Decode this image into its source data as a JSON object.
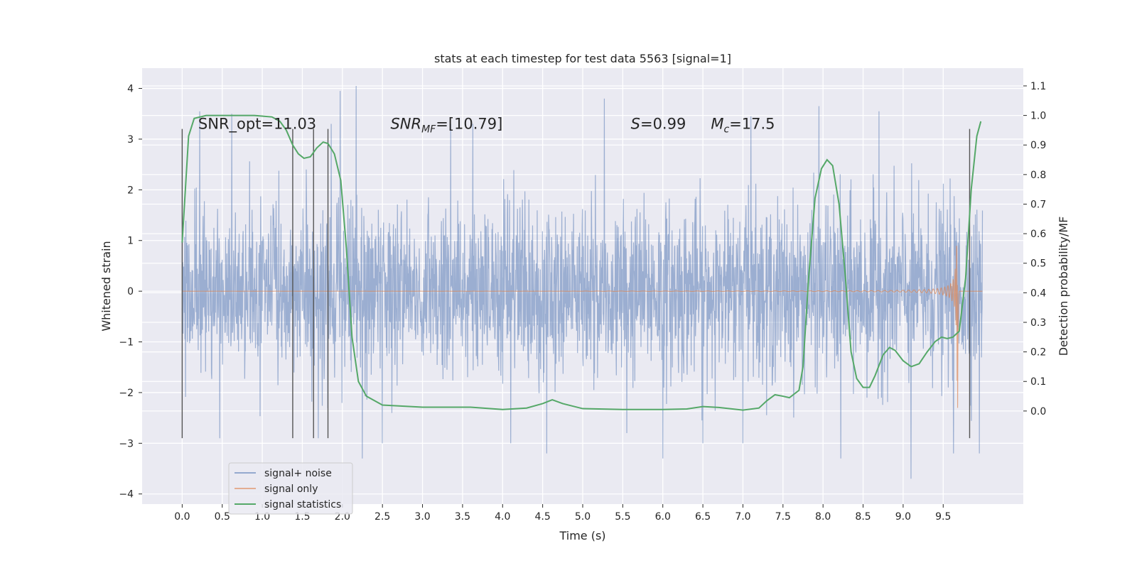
{
  "chart_data": {
    "type": "line",
    "title": "stats at each timestep for test data 5563 [signal=1]",
    "xlabel": "Time (s)",
    "ylabel_left": "Whitened strain",
    "ylabel_right": "Detection probability/MF",
    "xlim": [
      -0.5,
      10.5
    ],
    "ylim_left": [
      -4.2,
      4.4
    ],
    "ylim_right": [
      -0.315,
      1.16
    ],
    "grid": true,
    "xticks": [
      0.0,
      0.5,
      1.0,
      1.5,
      2.0,
      2.5,
      3.0,
      3.5,
      4.0,
      4.5,
      5.0,
      5.5,
      6.0,
      6.5,
      7.0,
      7.5,
      8.0,
      8.5,
      9.0,
      9.5
    ],
    "xtick_labels": [
      "0.0",
      "0.5",
      "1.0",
      "1.5",
      "2.0",
      "2.5",
      "3.0",
      "3.5",
      "4.0",
      "4.5",
      "5.0",
      "5.5",
      "6.0",
      "6.5",
      "7.0",
      "7.5",
      "8.0",
      "8.5",
      "9.0",
      "9.5"
    ],
    "yticks_left": [
      4,
      3,
      2,
      1,
      0,
      -1,
      -2,
      -3,
      -4
    ],
    "ytick_labels_left": [
      "4",
      "3",
      "2",
      "1",
      "0",
      "−1",
      "−2",
      "−3",
      "−4"
    ],
    "yticks_right": [
      1.1,
      1.0,
      0.9,
      0.8,
      0.7,
      0.6,
      0.5,
      0.4,
      0.3,
      0.2,
      0.1,
      0.0
    ],
    "ytick_labels_right": [
      "1.1",
      "1.0",
      "0.9",
      "0.8",
      "0.7",
      "0.6",
      "0.5",
      "0.4",
      "0.3",
      "0.2",
      "0.1",
      "0.0"
    ],
    "annotations": [
      {
        "text": "SNR_opt=11.03",
        "x": 0.2,
        "y": 3.2
      },
      {
        "base": "SNR",
        "sub": "MF",
        "rest": "=[10.79]",
        "x": 2.6,
        "y": 3.2
      },
      {
        "base": "S",
        "sub": "",
        "rest": "=0.99",
        "x": 5.6,
        "y": 3.2
      },
      {
        "base": "M",
        "sub": "c",
        "rest": "=17.5",
        "x": 6.6,
        "y": 3.2
      }
    ],
    "vertical_markers": [
      {
        "x": 0.0,
        "y_top": 3.2,
        "y_bottom": -2.9
      },
      {
        "x": 1.38,
        "y_top": 3.2,
        "y_bottom": -2.9
      },
      {
        "x": 1.64,
        "y_top": 3.2,
        "y_bottom": -2.9
      },
      {
        "x": 1.82,
        "y_top": 3.2,
        "y_bottom": -2.9
      },
      {
        "x": 9.83,
        "y_top": 3.2,
        "y_bottom": -2.9
      }
    ],
    "legend": {
      "placement": "lower-left",
      "entries": [
        "signal+ noise",
        "signal only",
        "signal statistics"
      ]
    },
    "series": [
      {
        "name": "signal+ noise",
        "axis": "left",
        "color": "#4c72b0",
        "kind": "noise",
        "x_range": [
          0.0,
          9.99
        ],
        "band_core": 1.4,
        "band_typical": 2.3,
        "peaks": [
          {
            "x": 0.22,
            "y": 3.55
          },
          {
            "x": 0.47,
            "y": -2.9
          },
          {
            "x": 0.62,
            "y": 3.5
          },
          {
            "x": 1.55,
            "y": 2.4
          },
          {
            "x": 1.7,
            "y": -2.9
          },
          {
            "x": 1.86,
            "y": 3.3
          },
          {
            "x": 1.97,
            "y": 3.95
          },
          {
            "x": 2.17,
            "y": 4.05
          },
          {
            "x": 2.25,
            "y": -3.3
          },
          {
            "x": 2.5,
            "y": -3.0
          },
          {
            "x": 3.35,
            "y": 3.3
          },
          {
            "x": 3.63,
            "y": 3.3
          },
          {
            "x": 4.1,
            "y": -3.0
          },
          {
            "x": 4.55,
            "y": -3.2
          },
          {
            "x": 5.27,
            "y": 3.8
          },
          {
            "x": 5.55,
            "y": -2.8
          },
          {
            "x": 6.0,
            "y": -3.3
          },
          {
            "x": 6.5,
            "y": -3.0
          },
          {
            "x": 7.0,
            "y": -3.0
          },
          {
            "x": 7.1,
            "y": 3.45
          },
          {
            "x": 7.95,
            "y": 3.65
          },
          {
            "x": 8.22,
            "y": -3.3
          },
          {
            "x": 8.7,
            "y": 3.55
          },
          {
            "x": 9.1,
            "y": -3.7
          },
          {
            "x": 9.63,
            "y": -3.2
          },
          {
            "x": 9.95,
            "y": -3.2
          }
        ]
      },
      {
        "name": "signal only",
        "axis": "left",
        "color": "#dd8452",
        "kind": "chirp",
        "x_range": [
          0.0,
          9.99
        ],
        "merger_time": 9.68,
        "peak_amplitude": 2.4
      },
      {
        "name": "signal statistics",
        "axis": "right",
        "color": "#55a868",
        "points": [
          [
            0.0,
            0.57
          ],
          [
            0.08,
            0.93
          ],
          [
            0.15,
            0.99
          ],
          [
            0.3,
            1.0
          ],
          [
            0.6,
            1.0
          ],
          [
            0.9,
            1.0
          ],
          [
            1.12,
            0.995
          ],
          [
            1.22,
            0.98
          ],
          [
            1.3,
            0.95
          ],
          [
            1.38,
            0.9
          ],
          [
            1.45,
            0.87
          ],
          [
            1.52,
            0.855
          ],
          [
            1.6,
            0.86
          ],
          [
            1.68,
            0.89
          ],
          [
            1.76,
            0.91
          ],
          [
            1.82,
            0.905
          ],
          [
            1.9,
            0.87
          ],
          [
            1.98,
            0.78
          ],
          [
            2.05,
            0.55
          ],
          [
            2.12,
            0.25
          ],
          [
            2.2,
            0.1
          ],
          [
            2.3,
            0.05
          ],
          [
            2.5,
            0.02
          ],
          [
            3.0,
            0.013
          ],
          [
            3.6,
            0.013
          ],
          [
            4.0,
            0.005
          ],
          [
            4.3,
            0.01
          ],
          [
            4.5,
            0.025
          ],
          [
            4.62,
            0.038
          ],
          [
            4.75,
            0.025
          ],
          [
            5.0,
            0.008
          ],
          [
            5.5,
            0.005
          ],
          [
            6.0,
            0.005
          ],
          [
            6.3,
            0.007
          ],
          [
            6.5,
            0.015
          ],
          [
            6.7,
            0.012
          ],
          [
            7.0,
            0.003
          ],
          [
            7.2,
            0.01
          ],
          [
            7.3,
            0.035
          ],
          [
            7.4,
            0.055
          ],
          [
            7.5,
            0.05
          ],
          [
            7.58,
            0.045
          ],
          [
            7.7,
            0.07
          ],
          [
            7.75,
            0.15
          ],
          [
            7.82,
            0.45
          ],
          [
            7.9,
            0.72
          ],
          [
            7.98,
            0.82
          ],
          [
            8.05,
            0.85
          ],
          [
            8.12,
            0.83
          ],
          [
            8.2,
            0.7
          ],
          [
            8.28,
            0.45
          ],
          [
            8.35,
            0.2
          ],
          [
            8.42,
            0.11
          ],
          [
            8.5,
            0.08
          ],
          [
            8.58,
            0.08
          ],
          [
            8.65,
            0.12
          ],
          [
            8.75,
            0.19
          ],
          [
            8.83,
            0.215
          ],
          [
            8.9,
            0.205
          ],
          [
            9.0,
            0.17
          ],
          [
            9.1,
            0.15
          ],
          [
            9.2,
            0.16
          ],
          [
            9.3,
            0.2
          ],
          [
            9.4,
            0.235
          ],
          [
            9.48,
            0.25
          ],
          [
            9.55,
            0.245
          ],
          [
            9.62,
            0.25
          ],
          [
            9.7,
            0.27
          ],
          [
            9.78,
            0.45
          ],
          [
            9.85,
            0.75
          ],
          [
            9.92,
            0.93
          ],
          [
            9.97,
            0.98
          ]
        ]
      }
    ]
  }
}
